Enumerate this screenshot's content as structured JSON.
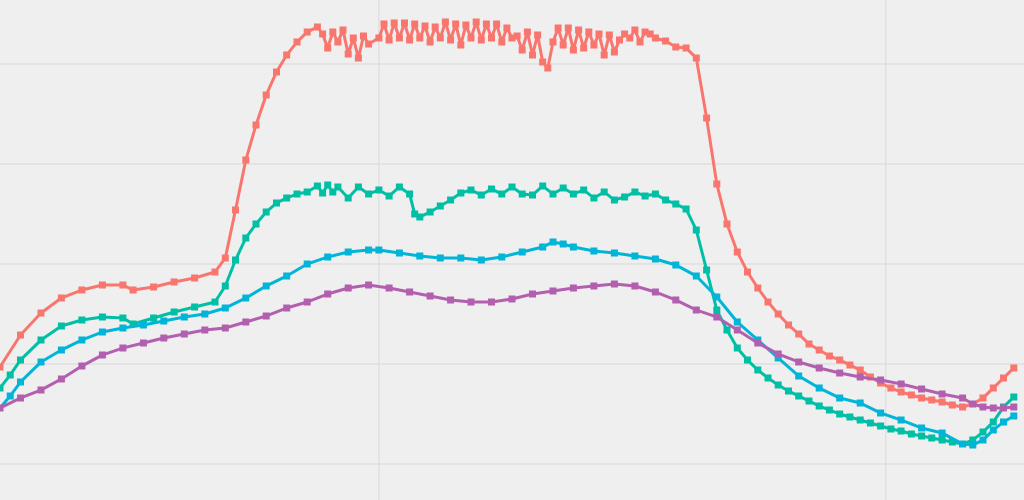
{
  "chart_data": {
    "type": "line",
    "title": "",
    "xlabel": "",
    "ylabel": "",
    "xlim": [
      0,
      200
    ],
    "ylim": [
      0,
      500
    ],
    "grid": true,
    "legend": "none",
    "x_gridlines": [
      74,
      173
    ],
    "y_gridlines": [
      36,
      136,
      236,
      336,
      436
    ],
    "colors": [
      "#f8766d",
      "#00bfa5",
      "#00b5d8",
      "#b35fb0"
    ],
    "series": [
      {
        "color": "#f8766d",
        "points": [
          [
            0,
            133
          ],
          [
            4,
            165
          ],
          [
            8,
            187
          ],
          [
            12,
            202
          ],
          [
            16,
            210
          ],
          [
            20,
            215
          ],
          [
            24,
            215
          ],
          [
            26,
            210
          ],
          [
            30,
            213
          ],
          [
            34,
            218
          ],
          [
            38,
            222
          ],
          [
            42,
            228
          ],
          [
            44,
            242
          ],
          [
            46,
            290
          ],
          [
            48,
            340
          ],
          [
            50,
            375
          ],
          [
            52,
            405
          ],
          [
            54,
            428
          ],
          [
            56,
            445
          ],
          [
            58,
            458
          ],
          [
            60,
            468
          ],
          [
            62,
            473
          ],
          [
            63,
            466
          ],
          [
            64,
            452
          ],
          [
            65,
            468
          ],
          [
            66,
            458
          ],
          [
            67,
            470
          ],
          [
            68,
            446
          ],
          [
            69,
            462
          ],
          [
            70,
            442
          ],
          [
            71,
            464
          ],
          [
            72,
            456
          ],
          [
            74,
            462
          ],
          [
            75,
            476
          ],
          [
            76,
            460
          ],
          [
            77,
            477
          ],
          [
            78,
            462
          ],
          [
            79,
            477
          ],
          [
            80,
            460
          ],
          [
            81,
            476
          ],
          [
            82,
            462
          ],
          [
            83,
            474
          ],
          [
            84,
            458
          ],
          [
            85,
            473
          ],
          [
            86,
            462
          ],
          [
            87,
            478
          ],
          [
            88,
            460
          ],
          [
            89,
            476
          ],
          [
            90,
            455
          ],
          [
            91,
            475
          ],
          [
            92,
            462
          ],
          [
            93,
            478
          ],
          [
            94,
            460
          ],
          [
            95,
            476
          ],
          [
            96,
            462
          ],
          [
            97,
            476
          ],
          [
            98,
            458
          ],
          [
            99,
            472
          ],
          [
            100,
            462
          ],
          [
            101,
            464
          ],
          [
            102,
            450
          ],
          [
            103,
            468
          ],
          [
            104,
            445
          ],
          [
            105,
            465
          ],
          [
            106,
            438
          ],
          [
            107,
            432
          ],
          [
            108,
            458
          ],
          [
            109,
            472
          ],
          [
            110,
            455
          ],
          [
            111,
            472
          ],
          [
            112,
            450
          ],
          [
            113,
            470
          ],
          [
            114,
            452
          ],
          [
            115,
            468
          ],
          [
            116,
            455
          ],
          [
            117,
            466
          ],
          [
            118,
            445
          ],
          [
            119,
            465
          ],
          [
            120,
            448
          ],
          [
            121,
            460
          ],
          [
            122,
            466
          ],
          [
            123,
            462
          ],
          [
            124,
            470
          ],
          [
            125,
            458
          ],
          [
            126,
            468
          ],
          [
            127,
            466
          ],
          [
            128,
            462
          ],
          [
            130,
            459
          ],
          [
            132,
            453
          ],
          [
            134,
            452
          ],
          [
            136,
            442
          ],
          [
            138,
            382
          ],
          [
            140,
            316
          ],
          [
            142,
            276
          ],
          [
            144,
            248
          ],
          [
            146,
            228
          ],
          [
            148,
            212
          ],
          [
            150,
            198
          ],
          [
            152,
            186
          ],
          [
            154,
            175
          ],
          [
            156,
            166
          ],
          [
            158,
            156
          ],
          [
            160,
            150
          ],
          [
            162,
            144
          ],
          [
            164,
            140
          ],
          [
            166,
            135
          ],
          [
            168,
            130
          ],
          [
            170,
            123
          ],
          [
            172,
            117
          ],
          [
            174,
            112
          ],
          [
            176,
            108
          ],
          [
            178,
            105
          ],
          [
            180,
            102
          ],
          [
            182,
            100
          ],
          [
            184,
            98
          ],
          [
            186,
            95
          ],
          [
            188,
            93
          ],
          [
            190,
            96
          ],
          [
            192,
            102
          ],
          [
            194,
            112
          ],
          [
            196,
            122
          ],
          [
            198,
            132
          ]
        ]
      },
      {
        "color": "#00bfa5",
        "points": [
          [
            0,
            112
          ],
          [
            2,
            125
          ],
          [
            4,
            140
          ],
          [
            8,
            160
          ],
          [
            12,
            174
          ],
          [
            16,
            180
          ],
          [
            20,
            183
          ],
          [
            24,
            182
          ],
          [
            26,
            176
          ],
          [
            30,
            182
          ],
          [
            34,
            188
          ],
          [
            38,
            193
          ],
          [
            42,
            198
          ],
          [
            44,
            214
          ],
          [
            46,
            240
          ],
          [
            48,
            262
          ],
          [
            50,
            276
          ],
          [
            52,
            288
          ],
          [
            54,
            297
          ],
          [
            56,
            302
          ],
          [
            58,
            306
          ],
          [
            60,
            308
          ],
          [
            62,
            314
          ],
          [
            63,
            307
          ],
          [
            64,
            315
          ],
          [
            65,
            308
          ],
          [
            66,
            313
          ],
          [
            68,
            302
          ],
          [
            70,
            313
          ],
          [
            72,
            306
          ],
          [
            74,
            310
          ],
          [
            76,
            304
          ],
          [
            78,
            313
          ],
          [
            80,
            306
          ],
          [
            81,
            286
          ],
          [
            82,
            283
          ],
          [
            84,
            288
          ],
          [
            86,
            294
          ],
          [
            88,
            300
          ],
          [
            90,
            307
          ],
          [
            92,
            310
          ],
          [
            94,
            305
          ],
          [
            96,
            311
          ],
          [
            98,
            306
          ],
          [
            100,
            313
          ],
          [
            102,
            306
          ],
          [
            104,
            305
          ],
          [
            106,
            314
          ],
          [
            108,
            306
          ],
          [
            110,
            312
          ],
          [
            112,
            306
          ],
          [
            114,
            310
          ],
          [
            116,
            302
          ],
          [
            118,
            308
          ],
          [
            120,
            300
          ],
          [
            122,
            303
          ],
          [
            124,
            308
          ],
          [
            126,
            304
          ],
          [
            128,
            306
          ],
          [
            130,
            300
          ],
          [
            132,
            296
          ],
          [
            134,
            291
          ],
          [
            136,
            270
          ],
          [
            138,
            230
          ],
          [
            140,
            190
          ],
          [
            142,
            170
          ],
          [
            144,
            152
          ],
          [
            146,
            140
          ],
          [
            148,
            130
          ],
          [
            150,
            122
          ],
          [
            152,
            115
          ],
          [
            154,
            109
          ],
          [
            156,
            104
          ],
          [
            158,
            99
          ],
          [
            160,
            94
          ],
          [
            162,
            90
          ],
          [
            164,
            86
          ],
          [
            166,
            83
          ],
          [
            168,
            80
          ],
          [
            170,
            77
          ],
          [
            172,
            74
          ],
          [
            174,
            71
          ],
          [
            176,
            69
          ],
          [
            178,
            66
          ],
          [
            180,
            64
          ],
          [
            182,
            62
          ],
          [
            184,
            60
          ],
          [
            186,
            58
          ],
          [
            188,
            56
          ],
          [
            190,
            60
          ],
          [
            192,
            68
          ],
          [
            194,
            78
          ],
          [
            196,
            93
          ],
          [
            198,
            103
          ]
        ]
      },
      {
        "color": "#00b5d8",
        "points": [
          [
            0,
            92
          ],
          [
            2,
            104
          ],
          [
            4,
            118
          ],
          [
            8,
            138
          ],
          [
            12,
            150
          ],
          [
            16,
            160
          ],
          [
            20,
            168
          ],
          [
            24,
            172
          ],
          [
            28,
            175
          ],
          [
            32,
            179
          ],
          [
            36,
            183
          ],
          [
            40,
            186
          ],
          [
            44,
            192
          ],
          [
            48,
            202
          ],
          [
            52,
            214
          ],
          [
            56,
            224
          ],
          [
            60,
            236
          ],
          [
            64,
            243
          ],
          [
            68,
            248
          ],
          [
            72,
            250
          ],
          [
            74,
            250
          ],
          [
            78,
            247
          ],
          [
            82,
            244
          ],
          [
            86,
            242
          ],
          [
            90,
            242
          ],
          [
            94,
            240
          ],
          [
            98,
            243
          ],
          [
            102,
            248
          ],
          [
            106,
            253
          ],
          [
            108,
            258
          ],
          [
            110,
            256
          ],
          [
            112,
            253
          ],
          [
            116,
            249
          ],
          [
            120,
            247
          ],
          [
            124,
            244
          ],
          [
            128,
            241
          ],
          [
            132,
            235
          ],
          [
            136,
            224
          ],
          [
            140,
            203
          ],
          [
            144,
            178
          ],
          [
            148,
            160
          ],
          [
            152,
            142
          ],
          [
            156,
            124
          ],
          [
            160,
            112
          ],
          [
            164,
            102
          ],
          [
            168,
            97
          ],
          [
            172,
            87
          ],
          [
            176,
            80
          ],
          [
            180,
            72
          ],
          [
            184,
            67
          ],
          [
            188,
            56
          ],
          [
            190,
            55
          ],
          [
            192,
            60
          ],
          [
            194,
            70
          ],
          [
            196,
            78
          ],
          [
            198,
            84
          ]
        ]
      },
      {
        "color": "#b35fb0",
        "points": [
          [
            0,
            92
          ],
          [
            4,
            102
          ],
          [
            8,
            110
          ],
          [
            12,
            121
          ],
          [
            16,
            134
          ],
          [
            20,
            145
          ],
          [
            24,
            152
          ],
          [
            28,
            157
          ],
          [
            32,
            162
          ],
          [
            36,
            166
          ],
          [
            40,
            170
          ],
          [
            44,
            172
          ],
          [
            48,
            178
          ],
          [
            52,
            184
          ],
          [
            56,
            192
          ],
          [
            60,
            198
          ],
          [
            64,
            206
          ],
          [
            68,
            212
          ],
          [
            72,
            215
          ],
          [
            76,
            212
          ],
          [
            80,
            208
          ],
          [
            84,
            204
          ],
          [
            88,
            200
          ],
          [
            92,
            198
          ],
          [
            96,
            198
          ],
          [
            100,
            201
          ],
          [
            104,
            206
          ],
          [
            108,
            209
          ],
          [
            112,
            212
          ],
          [
            116,
            214
          ],
          [
            120,
            216
          ],
          [
            124,
            214
          ],
          [
            128,
            208
          ],
          [
            132,
            200
          ],
          [
            136,
            190
          ],
          [
            140,
            183
          ],
          [
            144,
            170
          ],
          [
            148,
            157
          ],
          [
            152,
            146
          ],
          [
            156,
            138
          ],
          [
            160,
            132
          ],
          [
            164,
            127
          ],
          [
            168,
            123
          ],
          [
            172,
            120
          ],
          [
            176,
            116
          ],
          [
            180,
            111
          ],
          [
            184,
            106
          ],
          [
            188,
            102
          ],
          [
            190,
            96
          ],
          [
            192,
            93
          ],
          [
            194,
            92
          ],
          [
            196,
            92
          ],
          [
            198,
            93
          ]
        ]
      }
    ]
  }
}
